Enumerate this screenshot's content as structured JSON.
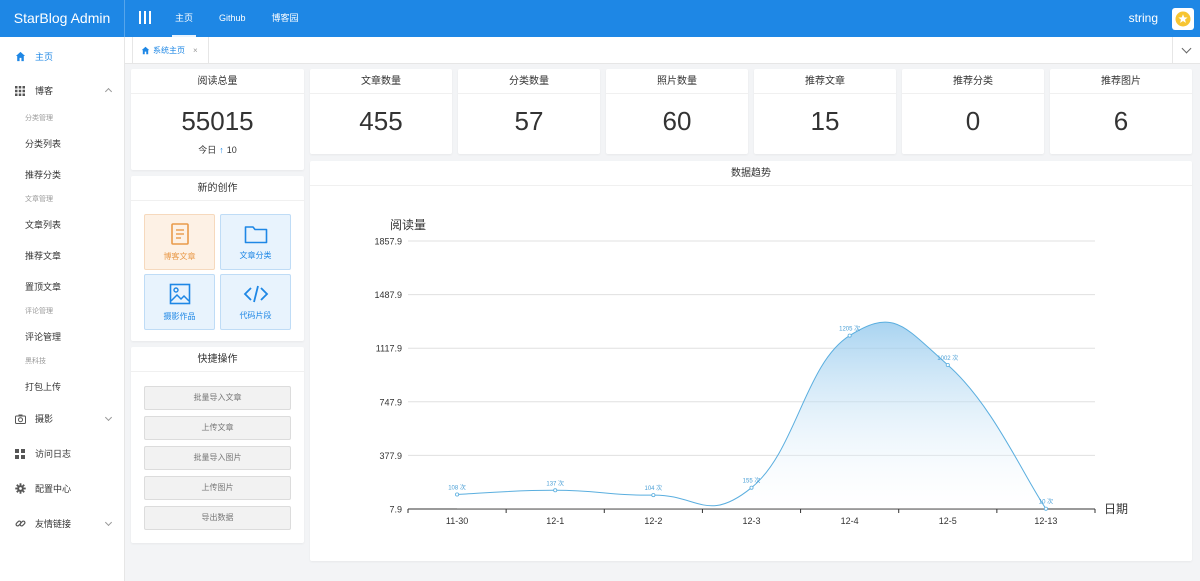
{
  "header": {
    "brand": "StarBlog Admin",
    "nav": [
      "主页",
      "Github",
      "博客园"
    ],
    "active_nav": "主页",
    "username": "string",
    "bg_color": "#1e87e5"
  },
  "sidebar": {
    "home": "主页",
    "blog": "博客",
    "groups": {
      "category_mgmt": "分类管理",
      "article_mgmt": "文章管理",
      "comment_mgmt": "评论管理",
      "tech": "黑科技"
    },
    "subs": {
      "category_list": "分类列表",
      "featured_category": "推荐分类",
      "article_list": "文章列表",
      "featured_article": "推荐文章",
      "pinned_article": "置顶文章",
      "comment_management": "评论管理",
      "pack_upload": "打包上传"
    },
    "photo": "摄影",
    "access_log": "访问日志",
    "config": "配置中心",
    "links": "友情链接"
  },
  "tabs": {
    "home_tab": "系统主页",
    "close": "×"
  },
  "stats": {
    "reads": {
      "title": "阅读总量",
      "value": "55015",
      "today_label": "今日",
      "today_arrow": "↑",
      "today_value": "10"
    },
    "articles": {
      "title": "文章数量",
      "value": "455"
    },
    "categories": {
      "title": "分类数量",
      "value": "57"
    },
    "photos": {
      "title": "照片数量",
      "value": "60"
    },
    "featured_articles": {
      "title": "推荐文章",
      "value": "15"
    },
    "featured_categories": {
      "title": "推荐分类",
      "value": "0"
    },
    "featured_photos": {
      "title": "推荐图片",
      "value": "6"
    }
  },
  "create": {
    "title": "新的创作",
    "tiles": {
      "blog_post": "博客文章",
      "article_category": "文章分类",
      "photography": "摄影作品",
      "code_snippet": "代码片段"
    }
  },
  "quick": {
    "title": "快捷操作",
    "buttons": [
      "批量导入文章",
      "上传文章",
      "批量导入图片",
      "上传图片",
      "导出数据"
    ]
  },
  "trend": {
    "title": "数据趋势"
  },
  "chart_data": {
    "type": "area",
    "ylabel": "阅读量",
    "xlabel": "日期",
    "categories": [
      "11-30",
      "12-1",
      "12-2",
      "12-3",
      "12-4",
      "12-5",
      "12-13"
    ],
    "values": [
      108,
      137,
      104,
      155,
      1205,
      1002,
      10
    ],
    "point_labels": [
      "108 次",
      "137 次",
      "104 次",
      "155 次",
      "1205 次",
      "1002 次",
      "10 次"
    ],
    "yticks": [
      "7.9",
      "377.9",
      "747.9",
      "1117.9",
      "1487.9",
      "1857.9"
    ],
    "ylim": [
      7.9,
      1857.9
    ],
    "line_color": "#5aaedf",
    "area_color": "#a8d2ee"
  }
}
